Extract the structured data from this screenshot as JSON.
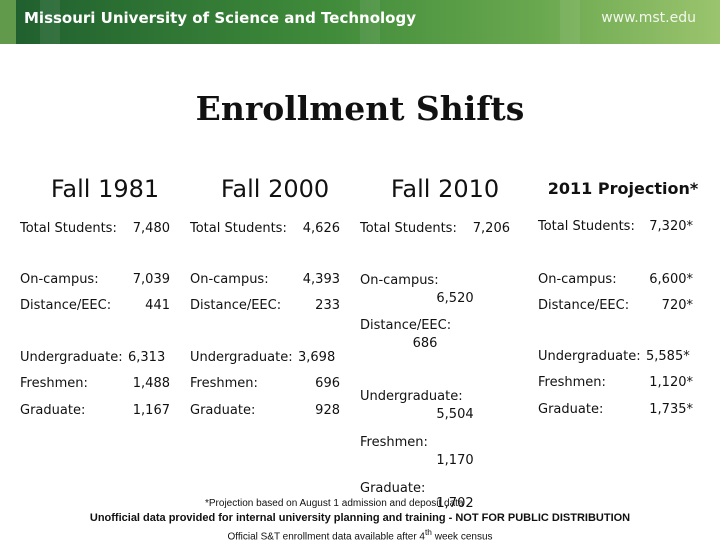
{
  "banner": {
    "title": "Missouri University of Science and Technology",
    "url": "www.mst.edu"
  },
  "slide": {
    "title": "Enrollment Shifts"
  },
  "columns": [
    {
      "head": "Fall 1981",
      "total_label": "Total Students:",
      "total_value": "7,480",
      "oncampus_label": "On-campus:",
      "oncampus_value": "7,039",
      "distance_label": "Distance/EEC:",
      "distance_value": "441",
      "undergrad_label": "Undergraduate:",
      "undergrad_value": "6,313",
      "freshmen_label": "Freshmen:",
      "freshmen_value": "1,488",
      "graduate_label": "Graduate:",
      "graduate_value": "1,167"
    },
    {
      "head": "Fall 2000",
      "total_label": "Total Students:",
      "total_value": "4,626",
      "oncampus_label": "On-campus:",
      "oncampus_value": "4,393",
      "distance_label": "Distance/EEC:",
      "distance_value": "233",
      "undergrad_label": "Undergraduate:",
      "undergrad_value": "3,698",
      "freshmen_label": "Freshmen:",
      "freshmen_value": "696",
      "graduate_label": "Graduate:",
      "graduate_value": "928"
    },
    {
      "head": "Fall 2010",
      "total_label": "Total Students:",
      "total_value": "7,206",
      "oncampus_label": "On-campus:",
      "oncampus_value": "6,520",
      "distance_label": "Distance/EEC:",
      "distance_value": "686",
      "undergrad_label": "Undergraduate:",
      "undergrad_value": "5,504",
      "freshmen_label": "Freshmen:",
      "freshmen_value": "1,170",
      "graduate_label": "Graduate:",
      "graduate_value": "1,702"
    },
    {
      "head": "2011 Projection*",
      "total_label": "Total Students:",
      "total_value": "7,320*",
      "oncampus_label": "On-campus:",
      "oncampus_value": "6,600*",
      "distance_label": "Distance/EEC:",
      "distance_value": "720*",
      "undergrad_label": "Undergraduate:",
      "undergrad_value": "5,585*",
      "freshmen_label": "Freshmen:",
      "freshmen_value": "1,120*",
      "graduate_label": "Graduate:",
      "graduate_value": "1,735*"
    }
  ],
  "footnotes": {
    "projection_note": "*Projection based on August 1 admission and deposit data",
    "unofficial_note": "Unofficial data provided for internal university planning and training - NOT FOR PUBLIC DISTRIBUTION",
    "official_note_prefix": "Official S&T enrollment data available  after 4",
    "official_note_sup": "th",
    "official_note_suffix": " week census"
  }
}
